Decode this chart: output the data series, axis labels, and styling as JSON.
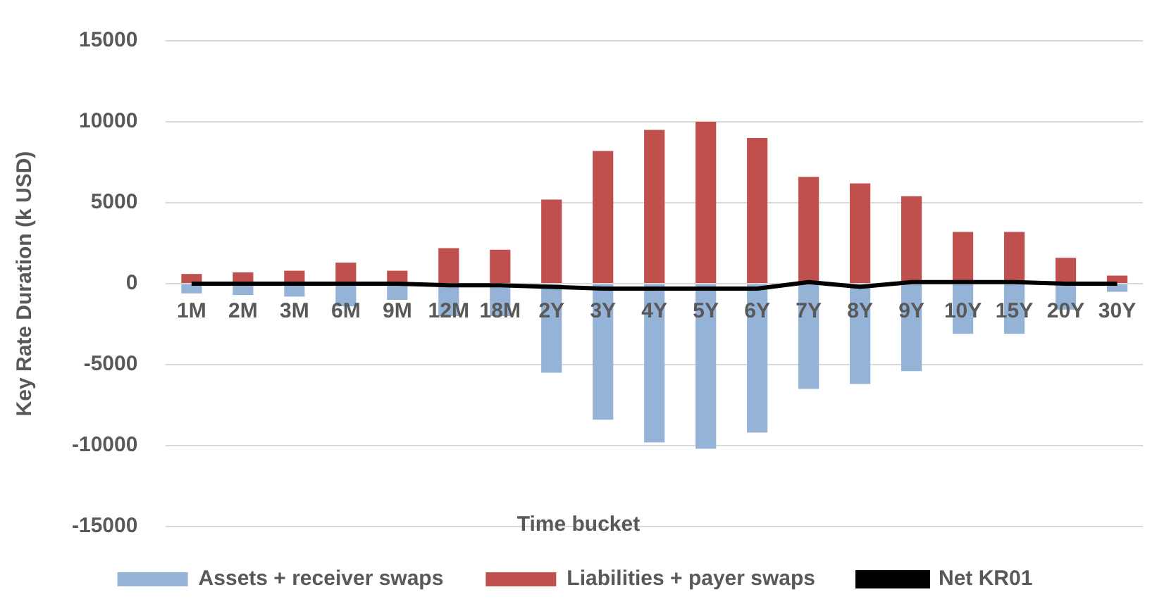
{
  "chart_data": {
    "type": "bar",
    "stacked": true,
    "xlabel": "Time bucket",
    "ylabel": "Key Rate Duration (k USD)",
    "categories": [
      "1M",
      "2M",
      "3M",
      "6M",
      "9M",
      "12M",
      "18M",
      "2Y",
      "3Y",
      "4Y",
      "5Y",
      "6Y",
      "7Y",
      "8Y",
      "9Y",
      "10Y",
      "15Y",
      "20Y",
      "30Y"
    ],
    "series": [
      {
        "name": "Assets + receiver swaps",
        "color": "#95b3d7",
        "values": [
          -600,
          -700,
          -800,
          -1400,
          -1000,
          -2000,
          -2000,
          -5500,
          -8400,
          -9800,
          -10200,
          -9200,
          -6500,
          -6200,
          -5400,
          -3100,
          -3100,
          -1600,
          -500
        ]
      },
      {
        "name": "Liabilities + payer swaps",
        "color": "#c0504d",
        "values": [
          600,
          700,
          800,
          1300,
          800,
          2200,
          2100,
          5200,
          8200,
          9500,
          10000,
          9000,
          6600,
          6200,
          5400,
          3200,
          3200,
          1600,
          500
        ]
      },
      {
        "name": "Net KR01",
        "type": "line",
        "color": "#000000",
        "values": [
          0,
          0,
          0,
          0,
          0,
          -100,
          -100,
          -200,
          -300,
          -300,
          -300,
          -300,
          100,
          -200,
          100,
          100,
          100,
          0,
          0
        ]
      }
    ],
    "ylim": [
      -15000,
      15000
    ],
    "yticks": [
      -15000,
      -10000,
      -5000,
      0,
      5000,
      10000,
      15000
    ],
    "grid": "y",
    "legend": "bottom",
    "marker": "none"
  }
}
